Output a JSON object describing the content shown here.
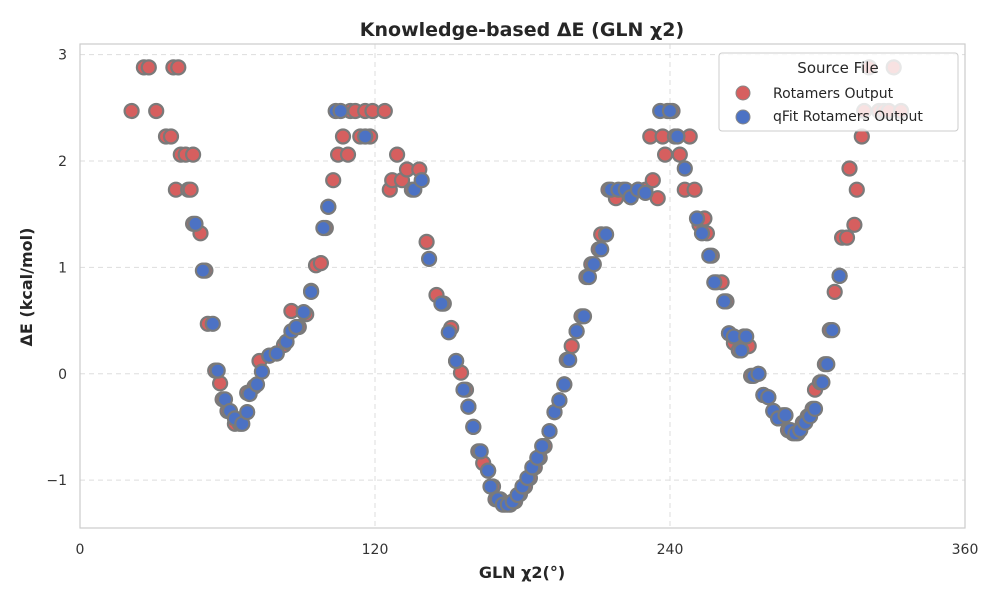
{
  "chart_data": {
    "type": "scatter",
    "title": "Knowledge-based ΔE (GLN χ2)",
    "xlabel": "GLN χ2(°)",
    "ylabel": "ΔE (kcal/mol)",
    "xlim": [
      0,
      360
    ],
    "ylim": [
      -1.45,
      3.1
    ],
    "xticks": [
      0,
      120,
      240,
      360
    ],
    "xtick_labels": [
      "0",
      "120",
      "240",
      "360"
    ],
    "yticks": [
      -1,
      0,
      1,
      2,
      3
    ],
    "ytick_labels": [
      "−1",
      "0",
      "1",
      "2",
      "3"
    ],
    "grid": true,
    "legend": {
      "title": "Source File",
      "placement": "top-right",
      "entries": [
        "Rotamers Output",
        "qFit Rotamers Output"
      ]
    },
    "series": [
      {
        "name": "Rotamers Output",
        "color": "#d65f5f",
        "points": [
          [
            21,
            2.47
          ],
          [
            26,
            2.88
          ],
          [
            28,
            2.88
          ],
          [
            31,
            2.47
          ],
          [
            35,
            2.23
          ],
          [
            37,
            2.23
          ],
          [
            38,
            2.88
          ],
          [
            40,
            2.88
          ],
          [
            39,
            1.73
          ],
          [
            41,
            2.06
          ],
          [
            43,
            2.06
          ],
          [
            44,
            1.73
          ],
          [
            45,
            1.73
          ],
          [
            46,
            2.06
          ],
          [
            46,
            1.41
          ],
          [
            49,
            1.32
          ],
          [
            51,
            0.97
          ],
          [
            52,
            0.47
          ],
          [
            55,
            0.03
          ],
          [
            57,
            -0.09
          ],
          [
            58,
            -0.24
          ],
          [
            60,
            -0.35
          ],
          [
            63,
            -0.47
          ],
          [
            65,
            -0.47
          ],
          [
            68,
            -0.18
          ],
          [
            71,
            -0.12
          ],
          [
            73,
            0.12
          ],
          [
            77,
            0.17
          ],
          [
            80,
            0.19
          ],
          [
            83,
            0.27
          ],
          [
            84,
            0.3
          ],
          [
            86,
            0.59
          ],
          [
            89,
            0.44
          ],
          [
            92,
            0.56
          ],
          [
            94,
            0.78
          ],
          [
            96,
            1.02
          ],
          [
            98,
            1.04
          ],
          [
            100,
            1.37
          ],
          [
            101,
            1.57
          ],
          [
            103,
            1.82
          ],
          [
            105,
            2.06
          ],
          [
            107,
            2.23
          ],
          [
            109,
            2.06
          ],
          [
            110,
            2.47
          ],
          [
            112,
            2.47
          ],
          [
            114,
            2.23
          ],
          [
            116,
            2.47
          ],
          [
            118,
            2.23
          ],
          [
            119,
            2.47
          ],
          [
            124,
            2.47
          ],
          [
            126,
            1.73
          ],
          [
            127,
            1.82
          ],
          [
            129,
            2.06
          ],
          [
            131,
            1.82
          ],
          [
            133,
            1.92
          ],
          [
            135,
            1.73
          ],
          [
            138,
            1.92
          ],
          [
            141,
            1.24
          ],
          [
            145,
            0.74
          ],
          [
            148,
            0.66
          ],
          [
            151,
            0.43
          ],
          [
            153,
            0.12
          ],
          [
            155,
            0.01
          ],
          [
            157,
            -0.15
          ],
          [
            158,
            -0.31
          ],
          [
            160,
            -0.5
          ],
          [
            162,
            -0.73
          ],
          [
            164,
            -0.84
          ],
          [
            166,
            -0.91
          ],
          [
            168,
            -1.06
          ],
          [
            169,
            -1.18
          ],
          [
            171,
            -1.18
          ],
          [
            173,
            -1.23
          ],
          [
            175,
            -1.23
          ],
          [
            177,
            -1.2
          ],
          [
            179,
            -1.13
          ],
          [
            181,
            -1.06
          ],
          [
            183,
            -0.98
          ],
          [
            185,
            -0.88
          ],
          [
            187,
            -0.79
          ],
          [
            189,
            -0.68
          ],
          [
            191,
            -0.54
          ],
          [
            193,
            -0.36
          ],
          [
            195,
            -0.25
          ],
          [
            197,
            -0.1
          ],
          [
            198,
            0.13
          ],
          [
            200,
            0.26
          ],
          [
            202,
            0.4
          ],
          [
            204,
            0.54
          ],
          [
            206,
            0.91
          ],
          [
            208,
            1.03
          ],
          [
            211,
            1.17
          ],
          [
            212,
            1.31
          ],
          [
            215,
            1.73
          ],
          [
            218,
            1.65
          ],
          [
            221,
            1.73
          ],
          [
            224,
            1.66
          ],
          [
            227,
            1.73
          ],
          [
            230,
            1.73
          ],
          [
            232,
            2.23
          ],
          [
            233,
            1.82
          ],
          [
            235,
            1.65
          ],
          [
            237,
            2.23
          ],
          [
            238,
            2.06
          ],
          [
            239,
            2.47
          ],
          [
            241,
            2.47
          ],
          [
            242,
            2.23
          ],
          [
            244,
            2.06
          ],
          [
            246,
            1.73
          ],
          [
            248,
            2.23
          ],
          [
            250,
            1.73
          ],
          [
            252,
            1.4
          ],
          [
            254,
            1.46
          ],
          [
            255,
            1.32
          ],
          [
            257,
            1.11
          ],
          [
            259,
            0.86
          ],
          [
            261,
            0.86
          ],
          [
            263,
            0.68
          ],
          [
            264,
            0.38
          ],
          [
            266,
            0.29
          ],
          [
            268,
            0.22
          ],
          [
            270,
            0.35
          ],
          [
            272,
            0.26
          ],
          [
            273,
            -0.02
          ],
          [
            276,
            0.0
          ],
          [
            278,
            -0.2
          ],
          [
            280,
            -0.22
          ],
          [
            282,
            -0.35
          ],
          [
            284,
            -0.42
          ],
          [
            286,
            -0.39
          ],
          [
            288,
            -0.53
          ],
          [
            290,
            -0.56
          ],
          [
            292,
            -0.56
          ],
          [
            294,
            -0.46
          ],
          [
            296,
            -0.4
          ],
          [
            298,
            -0.33
          ],
          [
            299,
            -0.15
          ],
          [
            301,
            -0.08
          ],
          [
            303,
            0.09
          ],
          [
            305,
            0.41
          ],
          [
            307,
            0.77
          ],
          [
            309,
            0.92
          ],
          [
            310,
            1.28
          ],
          [
            312,
            1.28
          ],
          [
            313,
            1.93
          ],
          [
            315,
            1.4
          ],
          [
            316,
            1.73
          ],
          [
            318,
            2.23
          ],
          [
            319,
            2.47
          ],
          [
            321,
            2.88
          ],
          [
            325,
            2.47
          ],
          [
            327,
            2.47
          ],
          [
            329,
            2.47
          ],
          [
            331,
            2.88
          ],
          [
            334,
            2.47
          ]
        ]
      },
      {
        "name": "qFit Rotamers Output",
        "color": "#4c72c4",
        "points": [
          [
            47,
            1.41
          ],
          [
            50,
            0.97
          ],
          [
            54,
            0.47
          ],
          [
            56,
            0.03
          ],
          [
            59,
            -0.24
          ],
          [
            61,
            -0.35
          ],
          [
            63,
            -0.42
          ],
          [
            66,
            -0.47
          ],
          [
            68,
            -0.36
          ],
          [
            69,
            -0.19
          ],
          [
            72,
            -0.1
          ],
          [
            74,
            0.02
          ],
          [
            77,
            0.17
          ],
          [
            80,
            0.19
          ],
          [
            84,
            0.3
          ],
          [
            86,
            0.4
          ],
          [
            88,
            0.44
          ],
          [
            91,
            0.58
          ],
          [
            94,
            0.77
          ],
          [
            99,
            1.37
          ],
          [
            101,
            1.57
          ],
          [
            104,
            2.47
          ],
          [
            106,
            2.47
          ],
          [
            116,
            2.23
          ],
          [
            136,
            1.73
          ],
          [
            139,
            1.82
          ],
          [
            142,
            1.08
          ],
          [
            147,
            0.66
          ],
          [
            150,
            0.39
          ],
          [
            153,
            0.12
          ],
          [
            156,
            -0.15
          ],
          [
            158,
            -0.31
          ],
          [
            160,
            -0.5
          ],
          [
            163,
            -0.73
          ],
          [
            166,
            -0.91
          ],
          [
            167,
            -1.06
          ],
          [
            170,
            -1.18
          ],
          [
            172,
            -1.23
          ],
          [
            174,
            -1.23
          ],
          [
            176,
            -1.2
          ],
          [
            178,
            -1.14
          ],
          [
            180,
            -1.06
          ],
          [
            182,
            -0.98
          ],
          [
            184,
            -0.88
          ],
          [
            186,
            -0.79
          ],
          [
            188,
            -0.68
          ],
          [
            191,
            -0.54
          ],
          [
            193,
            -0.36
          ],
          [
            195,
            -0.25
          ],
          [
            197,
            -0.1
          ],
          [
            199,
            0.13
          ],
          [
            202,
            0.4
          ],
          [
            205,
            0.54
          ],
          [
            207,
            0.91
          ],
          [
            209,
            1.03
          ],
          [
            212,
            1.17
          ],
          [
            214,
            1.31
          ],
          [
            216,
            1.73
          ],
          [
            219,
            1.73
          ],
          [
            222,
            1.73
          ],
          [
            224,
            1.66
          ],
          [
            227,
            1.73
          ],
          [
            230,
            1.7
          ],
          [
            236,
            2.47
          ],
          [
            240,
            2.47
          ],
          [
            243,
            2.23
          ],
          [
            246,
            1.93
          ],
          [
            251,
            1.46
          ],
          [
            253,
            1.32
          ],
          [
            256,
            1.11
          ],
          [
            258,
            0.86
          ],
          [
            262,
            0.68
          ],
          [
            264,
            0.38
          ],
          [
            266,
            0.35
          ],
          [
            269,
            0.22
          ],
          [
            271,
            0.35
          ],
          [
            274,
            -0.02
          ],
          [
            276,
            0.0
          ],
          [
            278,
            -0.2
          ],
          [
            280,
            -0.22
          ],
          [
            282,
            -0.35
          ],
          [
            284,
            -0.42
          ],
          [
            287,
            -0.39
          ],
          [
            289,
            -0.53
          ],
          [
            291,
            -0.56
          ],
          [
            293,
            -0.53
          ],
          [
            295,
            -0.46
          ],
          [
            297,
            -0.4
          ],
          [
            299,
            -0.33
          ],
          [
            302,
            -0.08
          ],
          [
            304,
            0.09
          ],
          [
            306,
            0.41
          ],
          [
            309,
            0.92
          ]
        ]
      }
    ]
  }
}
